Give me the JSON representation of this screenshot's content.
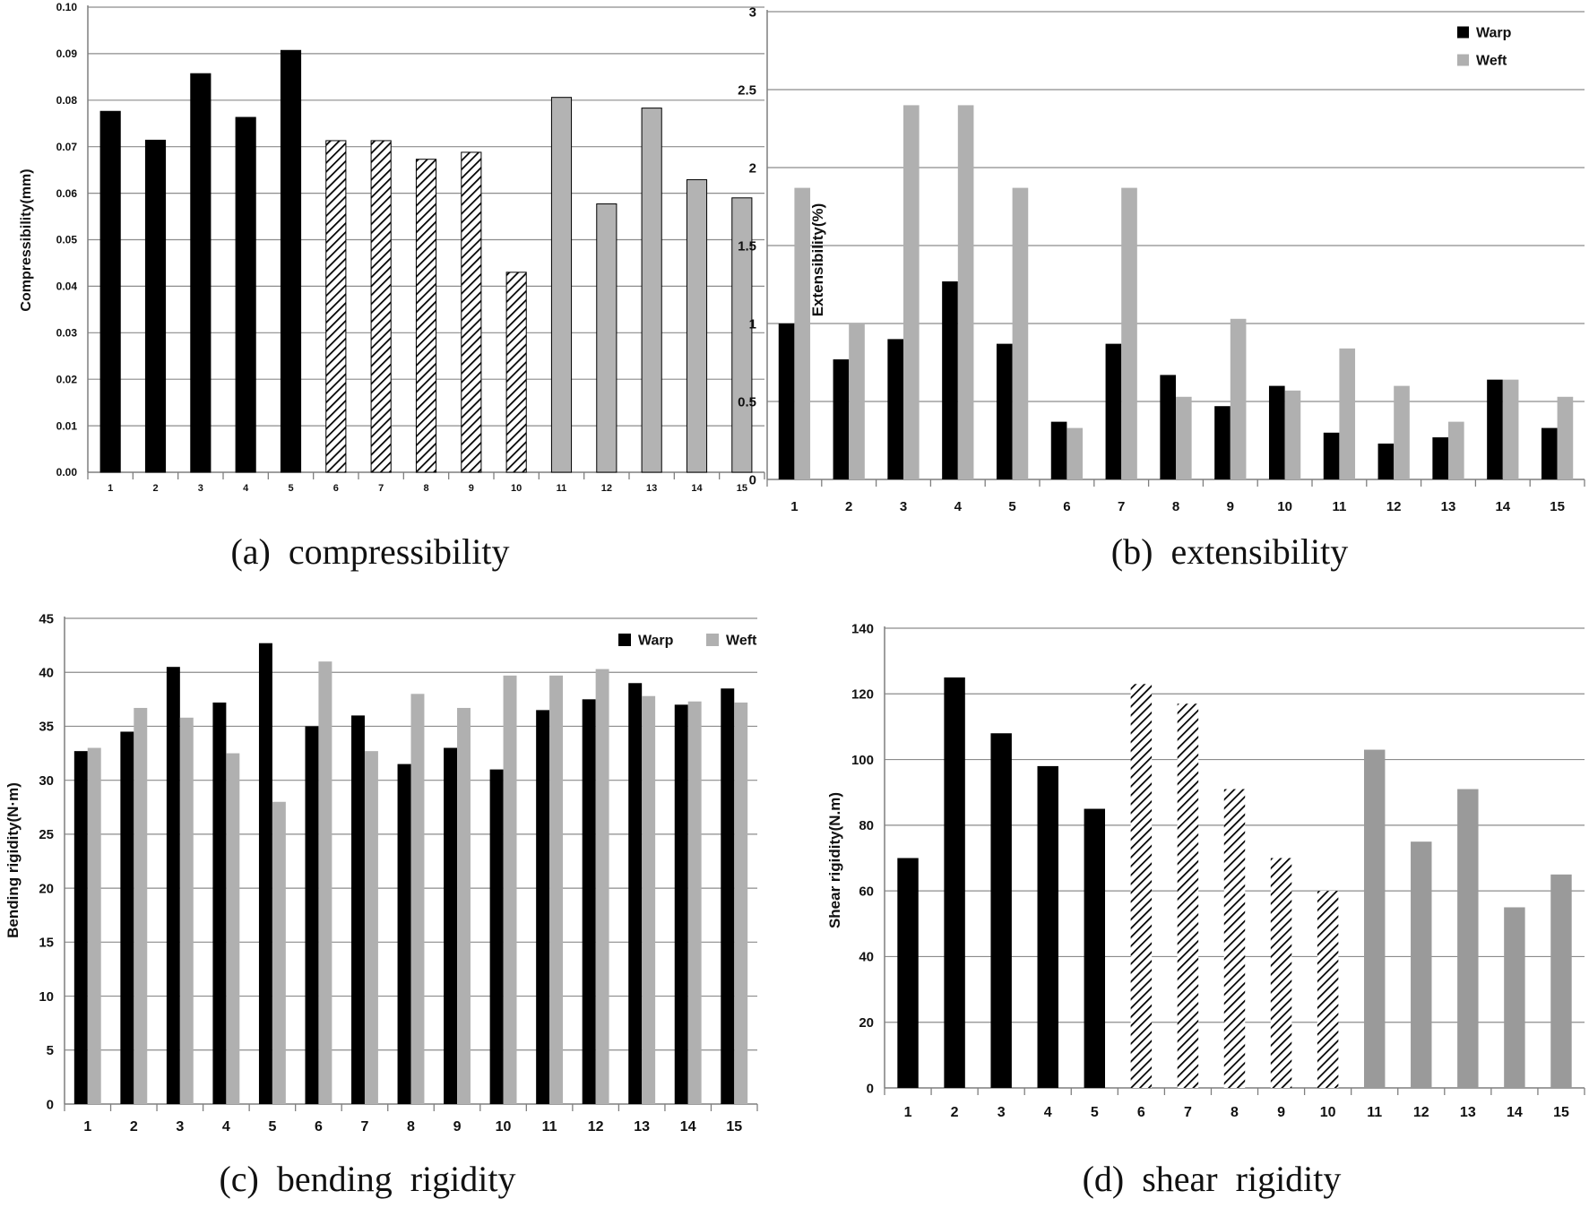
{
  "colors": {
    "black": "#000000",
    "gray_light": "#b0b0b0",
    "gray_mid": "#9a9a9a",
    "gridline": "#8c8c8c",
    "axis": "#7f7f7f"
  },
  "chart_data": [
    {
      "id": "compressibility",
      "type": "bar",
      "caption": "(a)  compressibility",
      "ylabel": "Compressibility(mm)",
      "ylim": [
        0,
        0.1
      ],
      "yticks": [
        "0.00",
        "0.01",
        "0.02",
        "0.03",
        "0.04",
        "0.05",
        "0.06",
        "0.07",
        "0.08",
        "0.09",
        "0.10"
      ],
      "categories": [
        "1",
        "2",
        "3",
        "4",
        "5",
        "6",
        "7",
        "8",
        "9",
        "10",
        "11",
        "12",
        "13",
        "14",
        "15"
      ],
      "series": [
        {
          "name": "",
          "values": [
            0.0776,
            0.0714,
            0.0857,
            0.0763,
            0.0907,
            0.0713,
            0.0713,
            0.0673,
            0.0688,
            0.043,
            0.0806,
            0.0577,
            0.0783,
            0.0629,
            0.059
          ],
          "fills": [
            "black",
            "black",
            "black",
            "black",
            "black",
            "hatch",
            "hatch",
            "hatch",
            "hatch",
            "hatch",
            "gray",
            "gray",
            "gray",
            "gray",
            "gray"
          ]
        }
      ],
      "legend": []
    },
    {
      "id": "extensibility",
      "type": "bar",
      "caption": "(b)  extensibility",
      "ylabel": "Extensibility(%)",
      "ylim": [
        0,
        3
      ],
      "yticks": [
        "0",
        "0.5",
        "1",
        "1.5",
        "2",
        "2.5",
        "3"
      ],
      "categories": [
        "1",
        "2",
        "3",
        "4",
        "5",
        "6",
        "7",
        "8",
        "9",
        "10",
        "11",
        "12",
        "13",
        "14",
        "15"
      ],
      "series": [
        {
          "name": "Warp",
          "color": "black",
          "values": [
            1.0,
            0.77,
            0.9,
            1.27,
            0.87,
            0.37,
            0.87,
            0.67,
            0.47,
            0.6,
            0.3,
            0.23,
            0.27,
            0.64,
            0.33
          ]
        },
        {
          "name": "Weft",
          "color": "gray_light",
          "values": [
            1.87,
            1.0,
            2.4,
            2.4,
            1.87,
            0.33,
            1.87,
            0.53,
            1.03,
            0.57,
            0.84,
            0.6,
            0.37,
            0.64,
            0.53
          ]
        }
      ],
      "legend": [
        {
          "label": "Warp",
          "color": "black"
        },
        {
          "label": "Weft",
          "color": "gray_light"
        }
      ],
      "legend_placement": "top-right"
    },
    {
      "id": "bending",
      "type": "bar",
      "caption": "(c)  bending  rigidity",
      "ylabel": "Bending rigidity(N·m)",
      "ylim": [
        0,
        45
      ],
      "yticks": [
        "0",
        "5",
        "10",
        "15",
        "20",
        "25",
        "30",
        "35",
        "40",
        "45"
      ],
      "categories": [
        "1",
        "2",
        "3",
        "4",
        "5",
        "6",
        "7",
        "8",
        "9",
        "10",
        "11",
        "12",
        "13",
        "14",
        "15"
      ],
      "series": [
        {
          "name": "Warp",
          "color": "black",
          "values": [
            32.7,
            34.5,
            40.5,
            37.2,
            42.7,
            35.0,
            36.0,
            31.5,
            33.0,
            31.0,
            36.5,
            37.5,
            39.0,
            37.0,
            38.5
          ]
        },
        {
          "name": "Weft",
          "color": "gray_light",
          "values": [
            33.0,
            36.7,
            35.8,
            32.5,
            28.0,
            41.0,
            32.7,
            38.0,
            36.7,
            39.7,
            39.7,
            40.3,
            37.8,
            37.3,
            37.2
          ]
        }
      ],
      "legend": [
        {
          "label": "Warp",
          "color": "black"
        },
        {
          "label": "Weft",
          "color": "gray_light"
        }
      ],
      "legend_placement": "top-right"
    },
    {
      "id": "shear",
      "type": "bar",
      "caption": "(d)  shear  rigidity",
      "ylabel": "Shear rigidity(N.m)",
      "ylim": [
        0,
        140
      ],
      "yticks": [
        "0",
        "20",
        "40",
        "60",
        "80",
        "100",
        "120",
        "140"
      ],
      "categories": [
        "1",
        "2",
        "3",
        "4",
        "5",
        "6",
        "7",
        "8",
        "9",
        "10",
        "11",
        "12",
        "13",
        "14",
        "15"
      ],
      "series": [
        {
          "name": "",
          "values": [
            70,
            125,
            108,
            98,
            85,
            123,
            117,
            91,
            70,
            60,
            103,
            75,
            91,
            55,
            65
          ],
          "fills": [
            "black",
            "black",
            "black",
            "black",
            "black",
            "hatch",
            "hatch",
            "hatch",
            "hatch",
            "hatch",
            "gray",
            "gray",
            "gray",
            "gray",
            "gray"
          ]
        }
      ],
      "legend": []
    }
  ]
}
